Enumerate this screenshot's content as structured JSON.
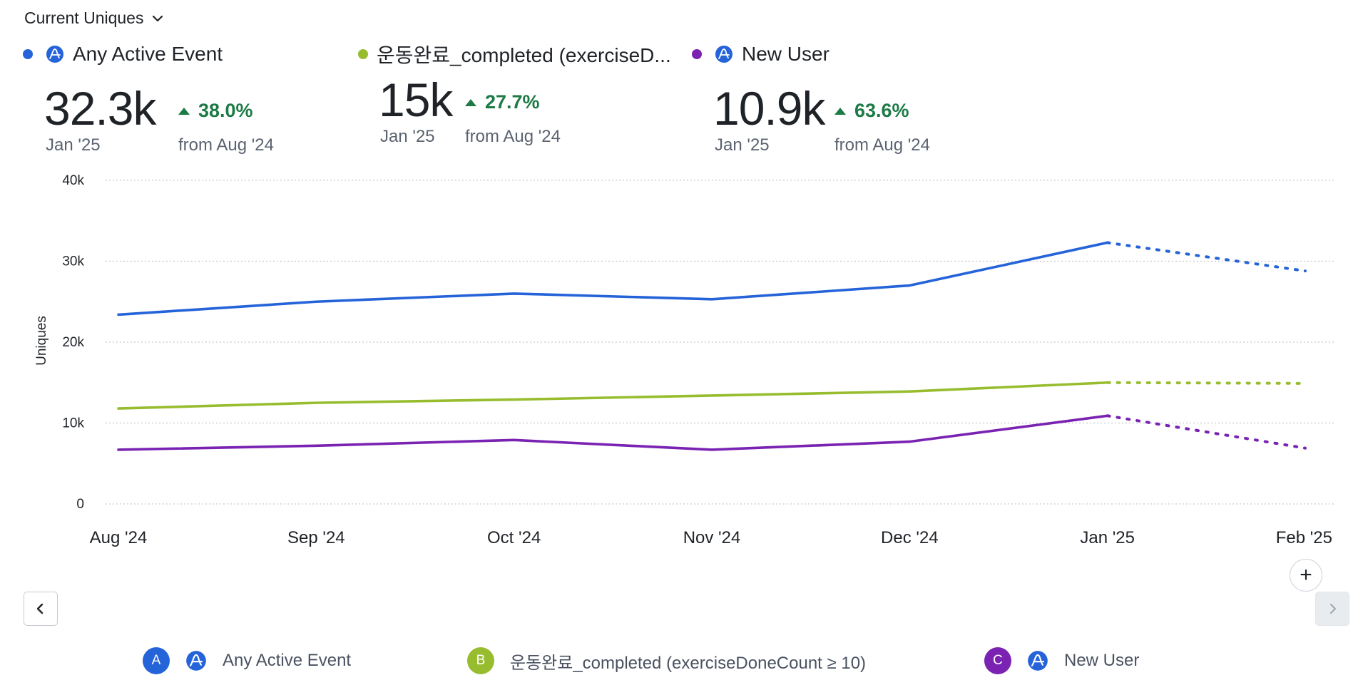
{
  "header": {
    "metric_label": "Current Uniques"
  },
  "colors": {
    "blue": "#2563d9",
    "green": "#97bd2f",
    "purple": "#7a22b2",
    "positive": "#1d7a45",
    "grid": "#c6c9ce"
  },
  "kpis": [
    {
      "name": "Any Active Event",
      "value": "32.3k",
      "date": "Jan '25",
      "change": "38.0%",
      "from": "from Aug '24",
      "color": "#2563d9",
      "icon": "amplitude-icon"
    },
    {
      "name": "운동완료_completed (exerciseD...",
      "value": "15k",
      "date": "Jan '25",
      "change": "27.7%",
      "from": "from Aug '24",
      "color": "#97bd2f",
      "icon": "none"
    },
    {
      "name": "New User",
      "value": "10.9k",
      "date": "Jan '25",
      "change": "63.6%",
      "from": "from Aug '24",
      "color": "#7a22b2",
      "icon": "amplitude-icon"
    }
  ],
  "chart_data": {
    "type": "line",
    "x": [
      "Aug '24",
      "Sep '24",
      "Oct '24",
      "Nov '24",
      "Dec '24",
      "Jan '25",
      "Feb '25"
    ],
    "ylabel": "Uniques",
    "ylim": [
      0,
      40000
    ],
    "yticks": [
      {
        "value": 0,
        "label": "0"
      },
      {
        "value": 10000,
        "label": "10k"
      },
      {
        "value": 20000,
        "label": "20k"
      },
      {
        "value": 30000,
        "label": "30k"
      },
      {
        "value": 40000,
        "label": "40k"
      }
    ],
    "grid": true,
    "incomplete_from_index": 5,
    "series": [
      {
        "name": "Any Active Event",
        "color": "#2563d9",
        "values": [
          23400,
          25000,
          26000,
          25300,
          27000,
          32300,
          28800
        ]
      },
      {
        "name": "운동완료_completed (exerciseDoneCount ≥ 10)",
        "color": "#97bd2f",
        "values": [
          11800,
          12500,
          12900,
          13400,
          13900,
          15000,
          14900
        ]
      },
      {
        "name": "New User",
        "color": "#7a22b2",
        "values": [
          6700,
          7200,
          7900,
          6700,
          7700,
          10900,
          6900
        ]
      }
    ]
  },
  "legend": [
    {
      "badge": "A",
      "label": "Any Active Event",
      "color": "#2563d9",
      "icon": "amplitude-icon"
    },
    {
      "badge": "B",
      "label": "운동완료_completed (exerciseDoneCount ≥ 10)",
      "color": "#97bd2f",
      "icon": "none"
    },
    {
      "badge": "C",
      "label": "New User",
      "color": "#7a22b2",
      "icon": "amplitude-icon"
    }
  ],
  "controls": {
    "add_symbol": "+"
  }
}
